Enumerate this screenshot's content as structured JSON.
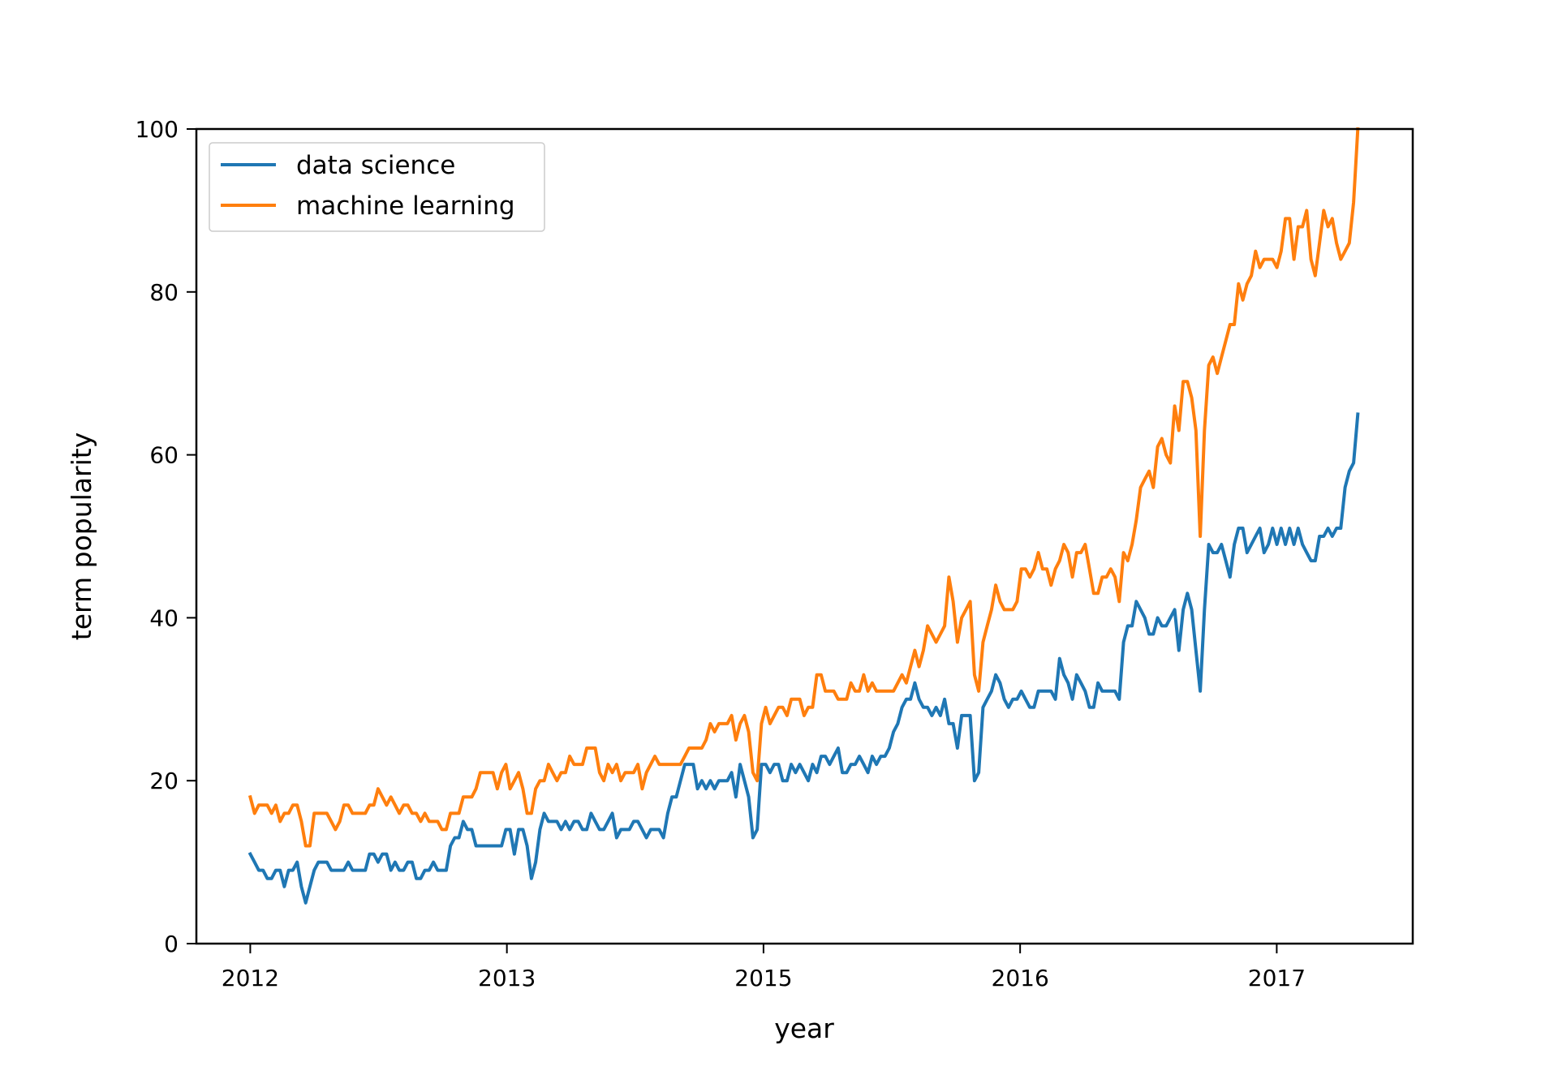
{
  "chart_data": {
    "type": "line",
    "title": "",
    "xlabel": "year",
    "ylabel": "term popularity",
    "ylim": [
      0,
      100
    ],
    "yticks": [
      0,
      20,
      40,
      60,
      80,
      100
    ],
    "xticks": [
      {
        "position": 0,
        "label": "2012"
      },
      {
        "position": 1,
        "label": "2013"
      },
      {
        "position": 2,
        "label": "2015"
      },
      {
        "position": 3,
        "label": "2016"
      },
      {
        "position": 4,
        "label": "2017"
      }
    ],
    "xlim": [
      -0.21,
      4.53
    ],
    "grid": false,
    "legend_position": "upper-left",
    "colors": {
      "data science": "#1f77b4",
      "machine learning": "#ff7f0e"
    },
    "x_step": 0.0166,
    "series": [
      {
        "name": "data science",
        "values": [
          11,
          10,
          9,
          9,
          8,
          8,
          9,
          9,
          7,
          9,
          9,
          10,
          7,
          5,
          7,
          9,
          10,
          10,
          10,
          9,
          9,
          9,
          9,
          10,
          9,
          9,
          9,
          9,
          11,
          11,
          10,
          11,
          11,
          9,
          10,
          9,
          9,
          10,
          10,
          8,
          8,
          9,
          9,
          10,
          9,
          9,
          9,
          12,
          13,
          13,
          15,
          14,
          14,
          12,
          12,
          12,
          12,
          12,
          12,
          12,
          14,
          14,
          11,
          14,
          14,
          12,
          8,
          10,
          14,
          16,
          15,
          15,
          15,
          14,
          15,
          14,
          15,
          15,
          14,
          14,
          16,
          15,
          14,
          14,
          15,
          16,
          13,
          14,
          14,
          14,
          15,
          15,
          14,
          13,
          14,
          14,
          14,
          13,
          16,
          18,
          18,
          20,
          22,
          22,
          22,
          19,
          20,
          19,
          20,
          19,
          20,
          20,
          20,
          21,
          18,
          22,
          20,
          18,
          13,
          14,
          22,
          22,
          21,
          22,
          22,
          20,
          20,
          22,
          21,
          22,
          21,
          20,
          22,
          21,
          23,
          23,
          22,
          23,
          24,
          21,
          21,
          22,
          22,
          23,
          22,
          21,
          23,
          22,
          23,
          23,
          24,
          26,
          27,
          29,
          30,
          30,
          32,
          30,
          29,
          29,
          28,
          29,
          28,
          30,
          27,
          27,
          24,
          28,
          28,
          28,
          20,
          21,
          29,
          30,
          31,
          33,
          32,
          30,
          29,
          30,
          30,
          31,
          30,
          29,
          29,
          31,
          31,
          31,
          31,
          30,
          35,
          33,
          32,
          30,
          33,
          32,
          31,
          29,
          29,
          32,
          31,
          31,
          31,
          31,
          30,
          37,
          39,
          39,
          42,
          41,
          40,
          38,
          38,
          40,
          39,
          39,
          40,
          41,
          36,
          41,
          43,
          41,
          36,
          31,
          41,
          49,
          48,
          48,
          49,
          47,
          45,
          49,
          51,
          51,
          48,
          49,
          50,
          51,
          48,
          49,
          51,
          49,
          51,
          49,
          51,
          49,
          51,
          49,
          48,
          47,
          47,
          50,
          50,
          51,
          50,
          51,
          51,
          56,
          58,
          59,
          65
        ]
      },
      {
        "name": "machine learning",
        "values": [
          18,
          16,
          17,
          17,
          17,
          16,
          17,
          15,
          16,
          16,
          17,
          17,
          15,
          12,
          12,
          16,
          16,
          16,
          16,
          15,
          14,
          15,
          17,
          17,
          16,
          16,
          16,
          16,
          17,
          17,
          19,
          18,
          17,
          18,
          17,
          16,
          17,
          17,
          16,
          16,
          15,
          16,
          15,
          15,
          15,
          14,
          14,
          16,
          16,
          16,
          18,
          18,
          18,
          19,
          21,
          21,
          21,
          21,
          19,
          21,
          22,
          19,
          20,
          21,
          19,
          16,
          16,
          19,
          20,
          20,
          22,
          21,
          20,
          21,
          21,
          23,
          22,
          22,
          22,
          24,
          24,
          24,
          21,
          20,
          22,
          21,
          22,
          20,
          21,
          21,
          21,
          22,
          19,
          21,
          22,
          23,
          22,
          22,
          22,
          22,
          22,
          22,
          23,
          24,
          24,
          24,
          24,
          25,
          27,
          26,
          27,
          27,
          27,
          28,
          25,
          27,
          28,
          26,
          21,
          20,
          27,
          29,
          27,
          28,
          29,
          29,
          28,
          30,
          30,
          30,
          28,
          29,
          29,
          33,
          33,
          31,
          31,
          31,
          30,
          30,
          30,
          32,
          31,
          31,
          33,
          31,
          32,
          31,
          31,
          31,
          31,
          31,
          32,
          33,
          32,
          34,
          36,
          34,
          36,
          39,
          38,
          37,
          38,
          39,
          45,
          42,
          37,
          40,
          41,
          42,
          33,
          31,
          37,
          39,
          41,
          44,
          42,
          41,
          41,
          41,
          42,
          46,
          46,
          45,
          46,
          48,
          46,
          46,
          44,
          46,
          47,
          49,
          48,
          45,
          48,
          48,
          49,
          46,
          43,
          43,
          45,
          45,
          46,
          45,
          42,
          48,
          47,
          49,
          52,
          56,
          57,
          58,
          56,
          61,
          62,
          60,
          59,
          66,
          63,
          69,
          69,
          67,
          63,
          50,
          63,
          71,
          72,
          70,
          72,
          74,
          76,
          76,
          81,
          79,
          81,
          82,
          85,
          83,
          84,
          84,
          84,
          83,
          85,
          89,
          89,
          84,
          88,
          88,
          90,
          84,
          82,
          86,
          90,
          88,
          89,
          86,
          84,
          85,
          86,
          91,
          100
        ]
      }
    ]
  }
}
